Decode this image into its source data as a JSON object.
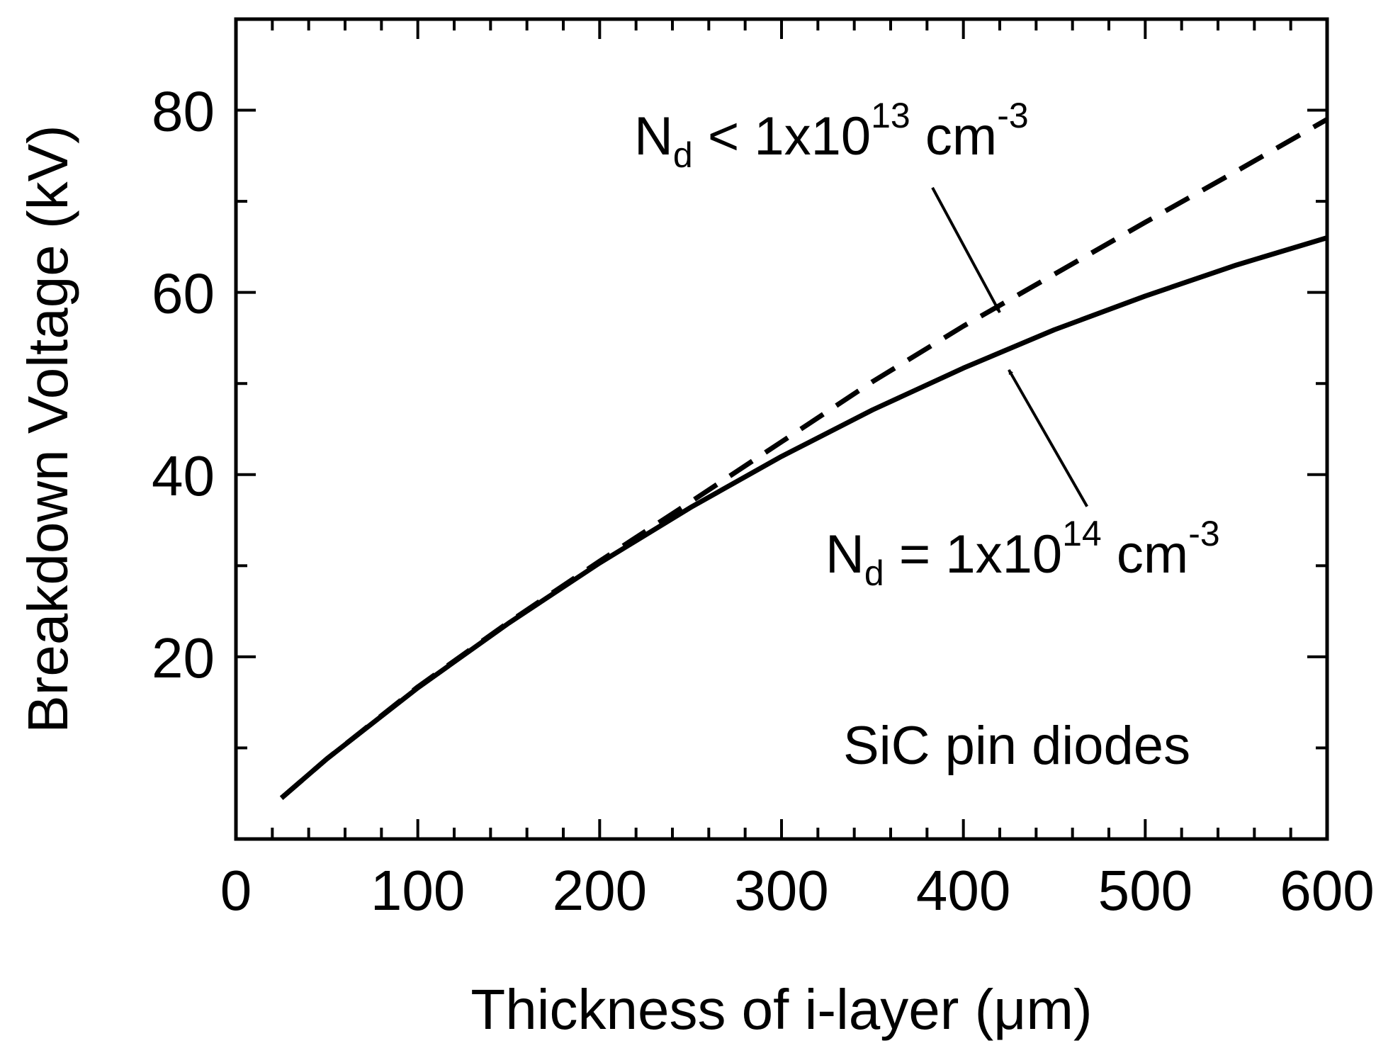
{
  "chart_data": {
    "type": "line",
    "xlabel": "Thickness of i-layer (μm)",
    "ylabel": "Breakdown Voltage (kV)",
    "xlim": [
      0,
      600
    ],
    "ylim": [
      0,
      90
    ],
    "xticks": [
      0,
      100,
      200,
      300,
      400,
      500,
      600
    ],
    "yticks": [
      20,
      40,
      60,
      80
    ],
    "xminor": [
      20,
      40,
      60,
      80,
      120,
      140,
      160,
      180,
      220,
      240,
      260,
      280,
      320,
      340,
      360,
      380,
      420,
      440,
      460,
      480,
      520,
      540,
      560,
      580
    ],
    "yminor": [
      10,
      30,
      50,
      70
    ],
    "grid": false,
    "series": [
      {
        "style": "dashed",
        "color": "#000000",
        "x": [
          25,
          50,
          100,
          150,
          200,
          250,
          300,
          350,
          400,
          450,
          500,
          550,
          600
        ],
        "y": [
          4.5,
          8.8,
          16.7,
          23.8,
          30.5,
          37.0,
          43.6,
          50.2,
          56.3,
          62.0,
          67.7,
          73.3,
          79.0
        ]
      },
      {
        "style": "solid",
        "color": "#000000",
        "x": [
          25,
          50,
          100,
          150,
          200,
          250,
          300,
          350,
          400,
          450,
          500,
          550,
          600
        ],
        "y": [
          4.5,
          8.8,
          16.6,
          23.7,
          30.3,
          36.4,
          42.0,
          47.1,
          51.7,
          55.9,
          59.6,
          63.0,
          66.0
        ]
      }
    ],
    "annotations": [
      {
        "id": "nd-low",
        "main": "N",
        "sub": "d",
        "mid": " < 1x10",
        "sup": "13",
        "unit": " cm",
        "unit_sup": "-3",
        "arrow_from": [
          383,
          71.5
        ],
        "arrow_to": [
          420,
          57.8
        ]
      },
      {
        "id": "nd-high",
        "main": "N",
        "sub": "d",
        "mid": " = 1x10",
        "sup": "14",
        "unit": " cm",
        "unit_sup": "-3",
        "arrow_from": [
          468,
          36.5
        ],
        "arrow_to": [
          425,
          51.5
        ]
      },
      {
        "id": "device",
        "text": "SiC pin diodes"
      }
    ]
  }
}
